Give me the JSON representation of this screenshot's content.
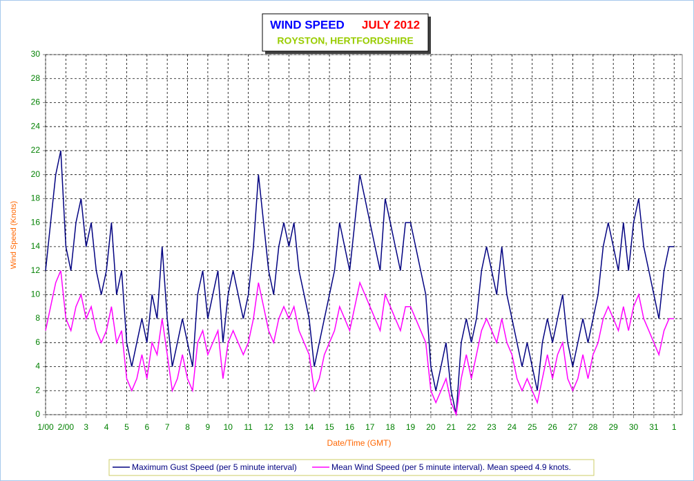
{
  "chart_data": {
    "type": "line",
    "title": "WIND SPEED",
    "title_date": "JULY 2012",
    "subtitle": "ROYSTON, HERTFORDSHIRE",
    "x_label": "Date/Time (GMT)",
    "y_label": "Wind Speed (Knots)",
    "x": [
      0,
      0.25,
      0.5,
      0.75,
      1,
      1.25,
      1.5,
      1.75,
      2,
      2.25,
      2.5,
      2.75,
      3,
      3.25,
      3.5,
      3.75,
      4,
      4.25,
      4.5,
      4.75,
      5,
      5.25,
      5.5,
      5.75,
      6,
      6.25,
      6.5,
      6.75,
      7,
      7.25,
      7.5,
      7.75,
      8,
      8.25,
      8.5,
      8.75,
      9,
      9.25,
      9.5,
      9.75,
      10,
      10.25,
      10.5,
      10.75,
      11,
      11.25,
      11.5,
      11.75,
      12,
      12.25,
      12.5,
      12.75,
      13,
      13.25,
      13.5,
      13.75,
      14,
      14.25,
      14.5,
      14.75,
      15,
      15.25,
      15.5,
      15.75,
      16,
      16.25,
      16.5,
      16.75,
      17,
      17.25,
      17.5,
      17.75,
      18,
      18.25,
      18.5,
      18.75,
      19,
      19.25,
      19.5,
      19.75,
      20,
      20.25,
      20.5,
      20.75,
      21,
      21.25,
      21.5,
      21.75,
      22,
      22.25,
      22.5,
      22.75,
      23,
      23.25,
      23.5,
      23.75,
      24,
      24.25,
      24.5,
      24.75,
      25,
      25.25,
      25.5,
      25.75,
      26,
      26.25,
      26.5,
      26.75,
      27,
      27.25,
      27.5,
      27.75,
      28,
      28.25,
      28.5,
      28.75,
      29,
      29.25,
      29.5,
      29.75,
      30,
      30.25,
      30.5,
      30.75,
      31
    ],
    "series": [
      {
        "name": "Maximum Gust Speed (per 5 minute interval)",
        "color": "#000080",
        "values": [
          12,
          16,
          20,
          22,
          14,
          12,
          16,
          18,
          14,
          16,
          12,
          10,
          12,
          16,
          10,
          12,
          6,
          4,
          6,
          8,
          6,
          10,
          8,
          14,
          8,
          4,
          6,
          8,
          6,
          4,
          10,
          12,
          8,
          10,
          12,
          6,
          10,
          12,
          10,
          8,
          10,
          14,
          20,
          16,
          12,
          10,
          14,
          16,
          14,
          16,
          12,
          10,
          8,
          4,
          6,
          8,
          10,
          12,
          16,
          14,
          12,
          16,
          20,
          18,
          16,
          14,
          12,
          18,
          16,
          14,
          12,
          16,
          16,
          14,
          12,
          10,
          4,
          2,
          4,
          6,
          2,
          0,
          6,
          8,
          6,
          8,
          12,
          14,
          12,
          10,
          14,
          10,
          8,
          6,
          4,
          6,
          4,
          2,
          6,
          8,
          6,
          8,
          10,
          6,
          4,
          6,
          8,
          6,
          8,
          10,
          14,
          16,
          14,
          12,
          16,
          12,
          16,
          18,
          14,
          12,
          10,
          8,
          12,
          14,
          14
        ]
      },
      {
        "name": "Mean Wind Speed (per 5 minute interval). Mean speed 4.9 knots.",
        "color": "#ff00ff",
        "values": [
          7,
          9,
          11,
          12,
          8,
          7,
          9,
          10,
          8,
          9,
          7,
          6,
          7,
          9,
          6,
          7,
          3,
          2,
          3,
          5,
          3,
          6,
          5,
          8,
          5,
          2,
          3,
          5,
          3,
          2,
          6,
          7,
          5,
          6,
          7,
          3,
          6,
          7,
          6,
          5,
          6,
          8,
          11,
          9,
          7,
          6,
          8,
          9,
          8,
          9,
          7,
          6,
          5,
          2,
          3,
          5,
          6,
          7,
          9,
          8,
          7,
          9,
          11,
          10,
          9,
          8,
          7,
          10,
          9,
          8,
          7,
          9,
          9,
          8,
          7,
          6,
          2,
          1,
          2,
          3,
          1,
          0,
          3,
          5,
          3,
          5,
          7,
          8,
          7,
          6,
          8,
          6,
          5,
          3,
          2,
          3,
          2,
          1,
          3,
          5,
          3,
          5,
          6,
          3,
          2,
          3,
          5,
          3,
          5,
          6,
          8,
          9,
          8,
          7,
          9,
          7,
          9,
          10,
          8,
          7,
          6,
          5,
          7,
          8,
          8
        ]
      }
    ],
    "xlim": [
      0,
      31.4
    ],
    "ylim": [
      0,
      30
    ],
    "xticks": [
      {
        "value": 0,
        "label": "1/00"
      },
      {
        "value": 1,
        "label": "2/00"
      },
      {
        "value": 2,
        "label": "3"
      },
      {
        "value": 3,
        "label": "4"
      },
      {
        "value": 4,
        "label": "5"
      },
      {
        "value": 5,
        "label": "6"
      },
      {
        "value": 6,
        "label": "7"
      },
      {
        "value": 7,
        "label": "8"
      },
      {
        "value": 8,
        "label": "9"
      },
      {
        "value": 9,
        "label": "10"
      },
      {
        "value": 10,
        "label": "11"
      },
      {
        "value": 11,
        "label": "12"
      },
      {
        "value": 12,
        "label": "13"
      },
      {
        "value": 13,
        "label": "14"
      },
      {
        "value": 14,
        "label": "15"
      },
      {
        "value": 15,
        "label": "16"
      },
      {
        "value": 16,
        "label": "17"
      },
      {
        "value": 17,
        "label": "18"
      },
      {
        "value": 18,
        "label": "19"
      },
      {
        "value": 19,
        "label": "20"
      },
      {
        "value": 20,
        "label": "21"
      },
      {
        "value": 21,
        "label": "22"
      },
      {
        "value": 22,
        "label": "23"
      },
      {
        "value": 23,
        "label": "24"
      },
      {
        "value": 24,
        "label": "25"
      },
      {
        "value": 25,
        "label": "26"
      },
      {
        "value": 26,
        "label": "27"
      },
      {
        "value": 27,
        "label": "28"
      },
      {
        "value": 28,
        "label": "29"
      },
      {
        "value": 29,
        "label": "30"
      },
      {
        "value": 30,
        "label": "31"
      },
      {
        "value": 31,
        "label": "1"
      }
    ],
    "yticks": [
      0,
      2,
      4,
      6,
      8,
      10,
      12,
      14,
      16,
      18,
      20,
      22,
      24,
      26,
      28,
      30
    ],
    "grid": true
  }
}
